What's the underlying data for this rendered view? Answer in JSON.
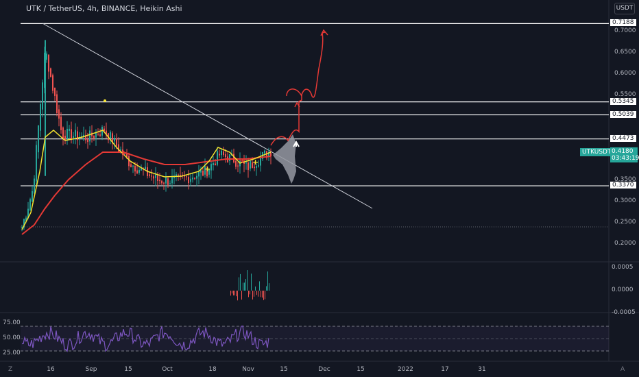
{
  "header": {
    "title": "UTK / TetherUS, 4h, BINANCE, Heikin Ashi"
  },
  "currency_button": "USDT",
  "colors": {
    "background": "#131722",
    "up": "#26a69a",
    "down": "#ef5350",
    "ma_fast": "#f5e42f",
    "ma_slow": "#e53935",
    "rsi": "#7e57c2",
    "level_line": "#ffffff",
    "trend_line": "#d1d4dc",
    "axis_text": "#b2b5be"
  },
  "price_axis": {
    "ticks": [
      "0.7000",
      "0.6500",
      "0.6000",
      "0.5500",
      "0.3500",
      "0.3000",
      "0.2500",
      "0.2000"
    ]
  },
  "levels": [
    {
      "label": "0.7188",
      "value": 0.7188
    },
    {
      "label": "0.5345",
      "value": 0.5345
    },
    {
      "label": "0.5039",
      "value": 0.5039
    },
    {
      "label": "0.4473",
      "value": 0.4473
    },
    {
      "label": "0.3370",
      "value": 0.337
    }
  ],
  "current_price": {
    "symbol": "UTKUSDT",
    "price": "0.4180",
    "countdown": "03:43:19"
  },
  "volume_pane": {
    "ticks": [
      "0.0005",
      "0.0000",
      "-0.0005"
    ]
  },
  "rsi_pane": {
    "ticks": [
      "75.00",
      "50.00",
      "25.00"
    ]
  },
  "time_axis": {
    "labels": [
      "16",
      "Sep",
      "15",
      "Oct",
      "18",
      "Nov",
      "15",
      "Dec",
      "15",
      "2022",
      "17",
      "31"
    ]
  },
  "corner_labels": {
    "left": "Z",
    "right": "A"
  },
  "chart_data": {
    "type": "candlestick",
    "title": "UTK / TetherUS, 4h, BINANCE, Heikin Ashi",
    "y_range": [
      0.18,
      0.75
    ],
    "series": [
      {
        "name": "price_approx",
        "x": [
          "Aug 4",
          "Aug 12",
          "Aug 16",
          "Aug 22",
          "Aug 30",
          "Sep 5",
          "Sep 15",
          "Sep 25",
          "Oct 5",
          "Oct 15",
          "Oct 22",
          "Oct 28",
          "Nov 2",
          "Nov 8"
        ],
        "values": [
          0.24,
          0.33,
          0.66,
          0.46,
          0.45,
          0.47,
          0.39,
          0.35,
          0.35,
          0.37,
          0.41,
          0.4,
          0.38,
          0.42
        ]
      }
    ],
    "hlines": [
      0.7188,
      0.5345,
      0.5039,
      0.4473,
      0.337
    ],
    "rsi_range": [
      0,
      100
    ],
    "rsi_levels": [
      70,
      50,
      30
    ]
  }
}
